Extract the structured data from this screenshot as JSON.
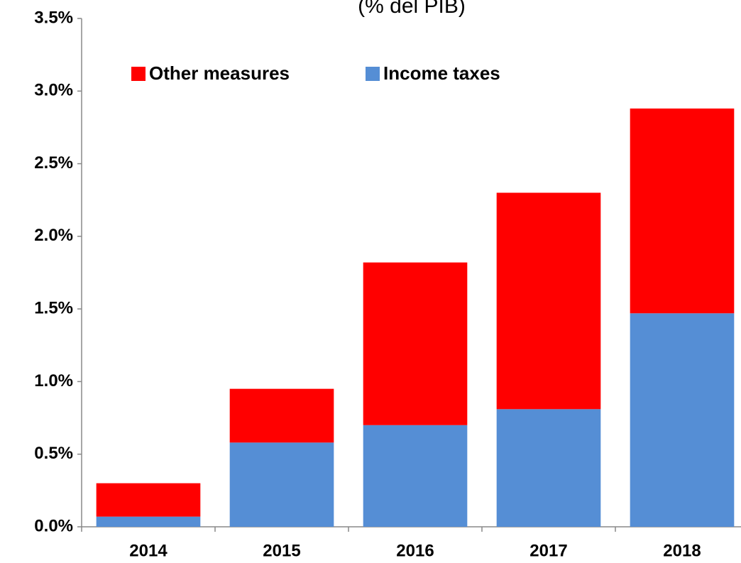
{
  "chart_data": {
    "type": "stacked_bar",
    "subtitle": "(% del PIB)",
    "categories": [
      "2014",
      "2015",
      "2016",
      "2017",
      "2018"
    ],
    "series": [
      {
        "name": "Other measures",
        "color": "#ff0000",
        "values": [
          0.23,
          0.37,
          1.12,
          1.49,
          1.41
        ]
      },
      {
        "name": "Income taxes",
        "color": "#558ed5",
        "values": [
          0.07,
          0.58,
          0.7,
          0.81,
          1.47
        ]
      }
    ],
    "ylim": [
      0,
      3.5
    ],
    "yticks": [
      {
        "value": 0,
        "label": "0.0%"
      },
      {
        "value": 0.5,
        "label": "0.5%"
      },
      {
        "value": 1,
        "label": "1.0%"
      },
      {
        "value": 1.5,
        "label": "1.5%"
      },
      {
        "value": 2,
        "label": "2.0%"
      },
      {
        "value": 2.5,
        "label": "2.5%"
      },
      {
        "value": 3,
        "label": "3.0%"
      },
      {
        "value": 3.5,
        "label": "3.5%"
      }
    ],
    "grid": false
  }
}
